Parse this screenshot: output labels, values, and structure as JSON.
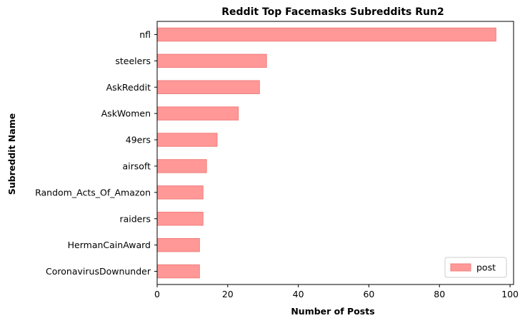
{
  "chart_data": {
    "type": "bar",
    "orientation": "horizontal",
    "title": "Reddit Top Facemasks Subreddits Run2",
    "xlabel": "Number of Posts",
    "ylabel": "Subreddit Name",
    "categories": [
      "nfl",
      "steelers",
      "AskReddit",
      "AskWomen",
      "49ers",
      "airsoft",
      "Random_Acts_Of_Amazon",
      "raiders",
      "HermanCainAward",
      "CoronavirusDownunder"
    ],
    "series": [
      {
        "name": "post",
        "values": [
          96,
          31,
          29,
          23,
          17,
          14,
          13,
          13,
          12,
          12
        ]
      }
    ],
    "xlim": [
      0,
      101
    ],
    "xticks": [
      0,
      20,
      40,
      60,
      80,
      100
    ],
    "grid": false,
    "legend_position": "bottom-right",
    "colors": {
      "bar_fill": "#ff9896",
      "bar_edge": "#f07f7d"
    }
  }
}
